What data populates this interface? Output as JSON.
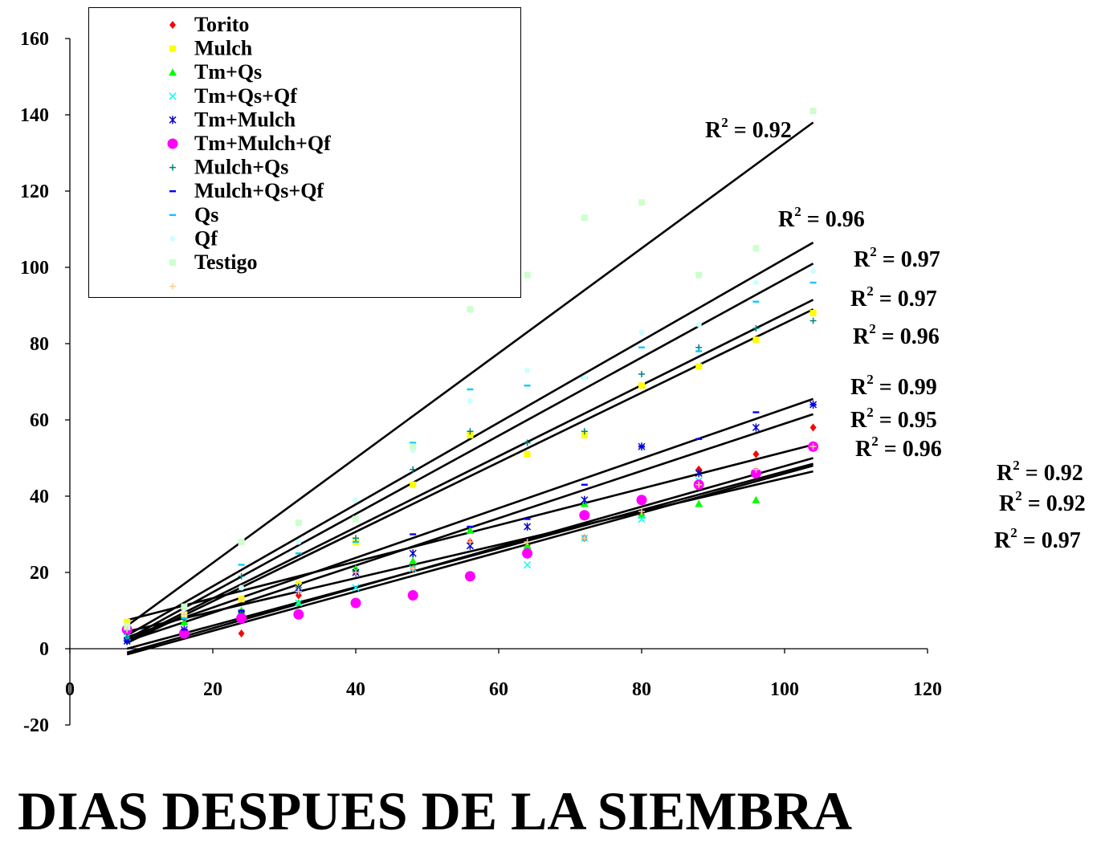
{
  "chart_data": {
    "type": "scatter",
    "xlabel": "DIAS DESPUES DE LA SIEMBRA",
    "ylabel": "",
    "xlim": [
      0,
      120
    ],
    "ylim": [
      -20,
      160
    ],
    "x_ticks": [
      "0",
      "20",
      "40",
      "60",
      "80",
      "100",
      "120"
    ],
    "y_ticks": [
      "-20",
      "0",
      "20",
      "40",
      "60",
      "80",
      "100",
      "120",
      "140",
      "160"
    ],
    "grid": false,
    "legend_position": "top-left",
    "x": [
      8,
      16,
      24,
      32,
      40,
      48,
      56,
      64,
      72,
      80,
      88,
      96,
      104
    ],
    "series": [
      {
        "name": "Torito",
        "marker": "diamond",
        "color": "#ff0000",
        "values": [
          2,
          8,
          4,
          14,
          20,
          21,
          28,
          27,
          29,
          35,
          47,
          51,
          58
        ]
      },
      {
        "name": "Mulch",
        "marker": "square",
        "color": "#ffff00",
        "values": [
          7,
          9,
          13,
          17,
          28,
          43,
          56,
          51,
          56,
          69,
          74,
          81,
          88
        ]
      },
      {
        "name": "Tm+Qs",
        "marker": "triangle",
        "color": "#00ff00",
        "values": [
          3,
          7,
          10,
          12,
          21,
          23,
          31,
          27,
          38,
          35,
          38,
          39,
          53
        ]
      },
      {
        "name": "Tm+Qs+Qf",
        "marker": "x",
        "color": "#00ffff",
        "values": [
          3,
          4,
          9,
          12,
          16,
          21,
          27,
          22,
          29,
          34,
          44,
          46,
          53
        ]
      },
      {
        "name": "Tm+Mulch",
        "marker": "asterisk",
        "color": "#0000cc",
        "values": [
          2,
          5,
          9,
          16,
          20,
          25,
          27,
          32,
          39,
          53,
          46,
          58,
          64
        ]
      },
      {
        "name": "Tm+Mulch+Qf",
        "marker": "circle",
        "color": "#ff00ff",
        "values": [
          5,
          4,
          8,
          9,
          12,
          14,
          19,
          25,
          35,
          39,
          43,
          46,
          53
        ]
      },
      {
        "name": "Mulch+Qs",
        "marker": "plus",
        "color": "#008080",
        "values": [
          3,
          8,
          19,
          16,
          29,
          47,
          57,
          54,
          57,
          72,
          79,
          84,
          86
        ]
      },
      {
        "name": "Mulch+Qs+Qf",
        "marker": "dash",
        "color": "#0000ff",
        "values": [
          2,
          5,
          10,
          15,
          20,
          30,
          32,
          34,
          43,
          53,
          55,
          62,
          64
        ]
      },
      {
        "name": "Qs",
        "marker": "dash",
        "color": "#00ccff",
        "values": [
          5,
          8,
          22,
          25,
          28,
          54,
          68,
          69,
          71,
          79,
          78,
          91,
          96
        ]
      },
      {
        "name": "Qf",
        "marker": "circle-small",
        "color": "#ccffff",
        "values": [
          6,
          9,
          16,
          28,
          39,
          52,
          65,
          73,
          71,
          83,
          85,
          96,
          99
        ]
      },
      {
        "name": "Testigo",
        "marker": "square",
        "color": "#ccffcc",
        "values": [
          6,
          11,
          28,
          33,
          34,
          53,
          89,
          98,
          113,
          117,
          98,
          105,
          141
        ]
      },
      {
        "name": "",
        "marker": "plus",
        "color": "#ffcc99",
        "values": [
          5,
          9,
          13,
          15,
          20,
          21,
          28,
          28,
          29,
          36,
          43,
          47,
          53
        ]
      }
    ],
    "trendlines": [
      {
        "x1": 8,
        "y1": 6,
        "x2": 104,
        "y2": 138
      },
      {
        "x1": 8,
        "y1": 3.5,
        "x2": 104,
        "y2": 106.5
      },
      {
        "x1": 8,
        "y1": 2.5,
        "x2": 104,
        "y2": 101
      },
      {
        "x1": 8,
        "y1": 2,
        "x2": 104,
        "y2": 91.5
      },
      {
        "x1": 8,
        "y1": 1.5,
        "x2": 104,
        "y2": 89
      },
      {
        "x1": 8,
        "y1": 3,
        "x2": 104,
        "y2": 65.5
      },
      {
        "x1": 8,
        "y1": 2,
        "x2": 104,
        "y2": 61.5
      },
      {
        "x1": 8,
        "y1": 7.5,
        "x2": 104,
        "y2": 53.5
      },
      {
        "x1": 8,
        "y1": 4.5,
        "x2": 104,
        "y2": 46.5
      },
      {
        "x1": 8,
        "y1": 0,
        "x2": 104,
        "y2": 48.5
      },
      {
        "x1": 8,
        "y1": -1,
        "x2": 104,
        "y2": 50
      },
      {
        "x1": 8,
        "y1": -1.5,
        "x2": 104,
        "y2": 48
      }
    ],
    "r2_labels": [
      {
        "prefix": "R",
        "sup": "2",
        "value": " = 0.92"
      },
      {
        "prefix": "R",
        "sup": "2",
        "value": " = 0.96"
      },
      {
        "prefix": "R",
        "sup": "2",
        "value": " = 0.97"
      },
      {
        "prefix": "R",
        "sup": "2",
        "value": " = 0.97"
      },
      {
        "prefix": "R",
        "sup": "2",
        "value": " = 0.96"
      },
      {
        "prefix": "R",
        "sup": "2",
        "value": " = 0.99"
      },
      {
        "prefix": "R",
        "sup": "2",
        "value": " = 0.95"
      },
      {
        "prefix": "R",
        "sup": "2",
        "value": " = 0.96"
      },
      {
        "prefix": "R",
        "sup": "2",
        "value": " = 0.92"
      },
      {
        "prefix": "R",
        "sup": "2",
        "value": " = 0.92"
      },
      {
        "prefix": "R",
        "sup": "2",
        "value": " = 0.97"
      }
    ]
  }
}
